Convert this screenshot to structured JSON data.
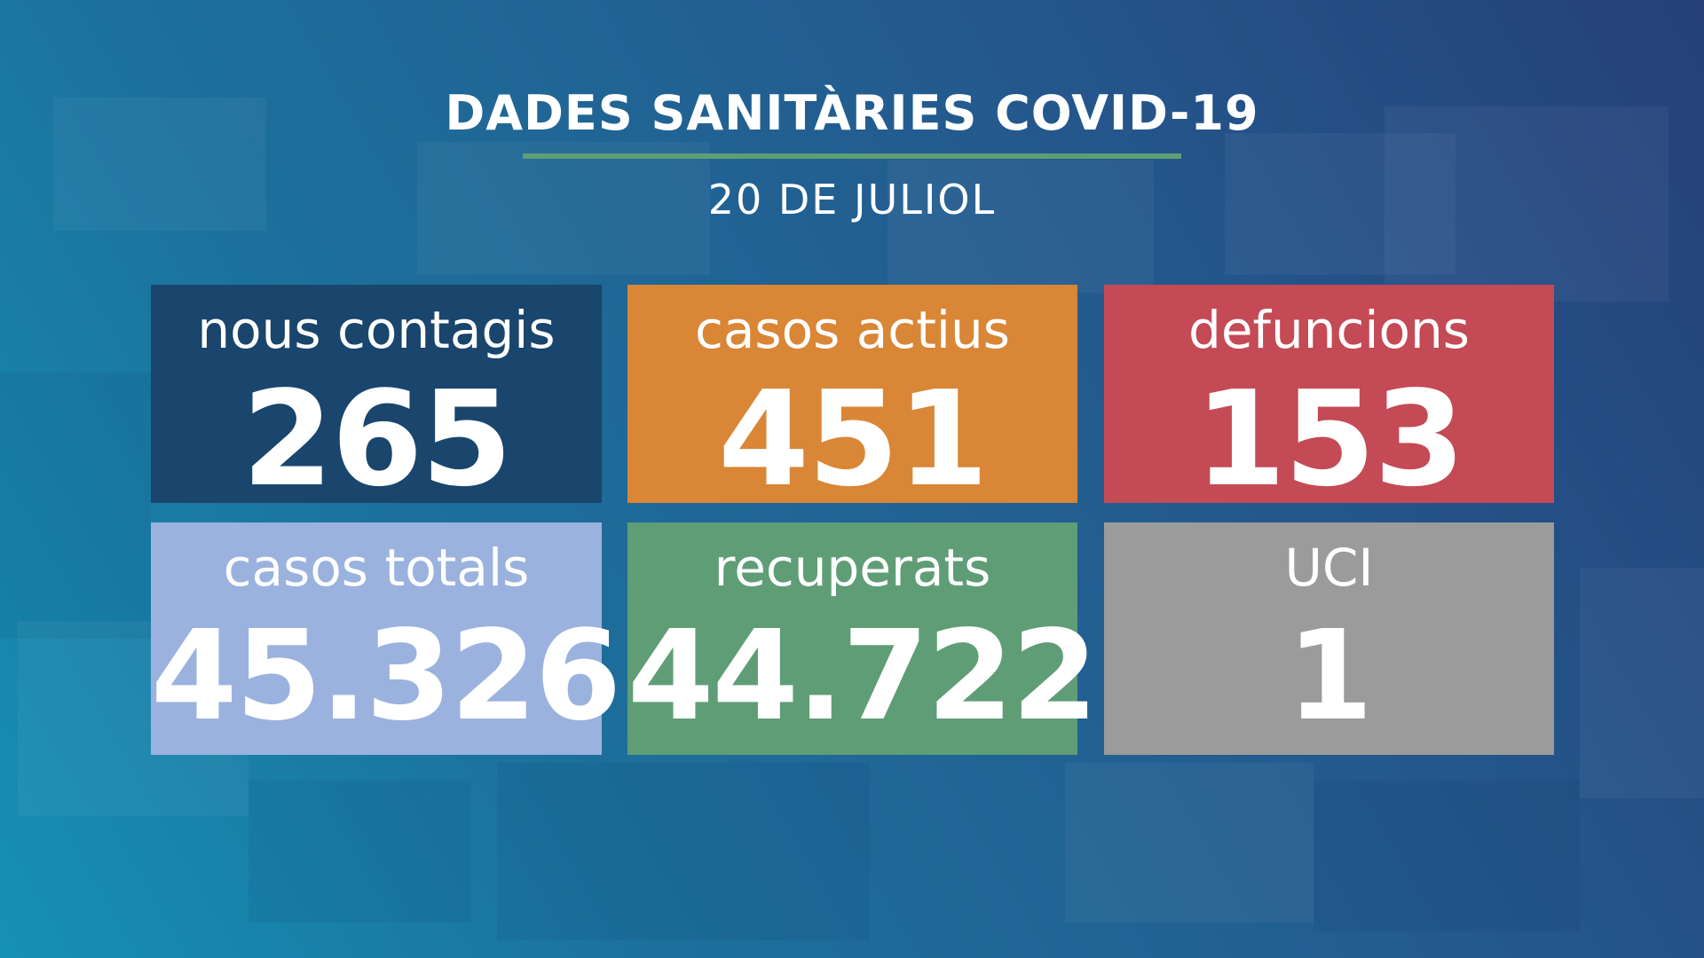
{
  "header": {
    "title": "DADES SANITÀRIES COVID-19",
    "date": "20 DE JULIOL",
    "rule_color": "#5e9e74"
  },
  "stats": [
    {
      "label": "nous contagis",
      "value": "265",
      "color": "#1a456c"
    },
    {
      "label": "casos actius",
      "value": "451",
      "color": "#d98636"
    },
    {
      "label": "defuncions",
      "value": "153",
      "color": "#c44a55"
    },
    {
      "label": "casos totals",
      "value": "45.326",
      "color": "#9bb2de"
    },
    {
      "label": "recuperats",
      "value": "44.722",
      "color": "#5f9d76"
    },
    {
      "label": "UCI",
      "value": "1",
      "color": "#9b9b9b"
    }
  ]
}
